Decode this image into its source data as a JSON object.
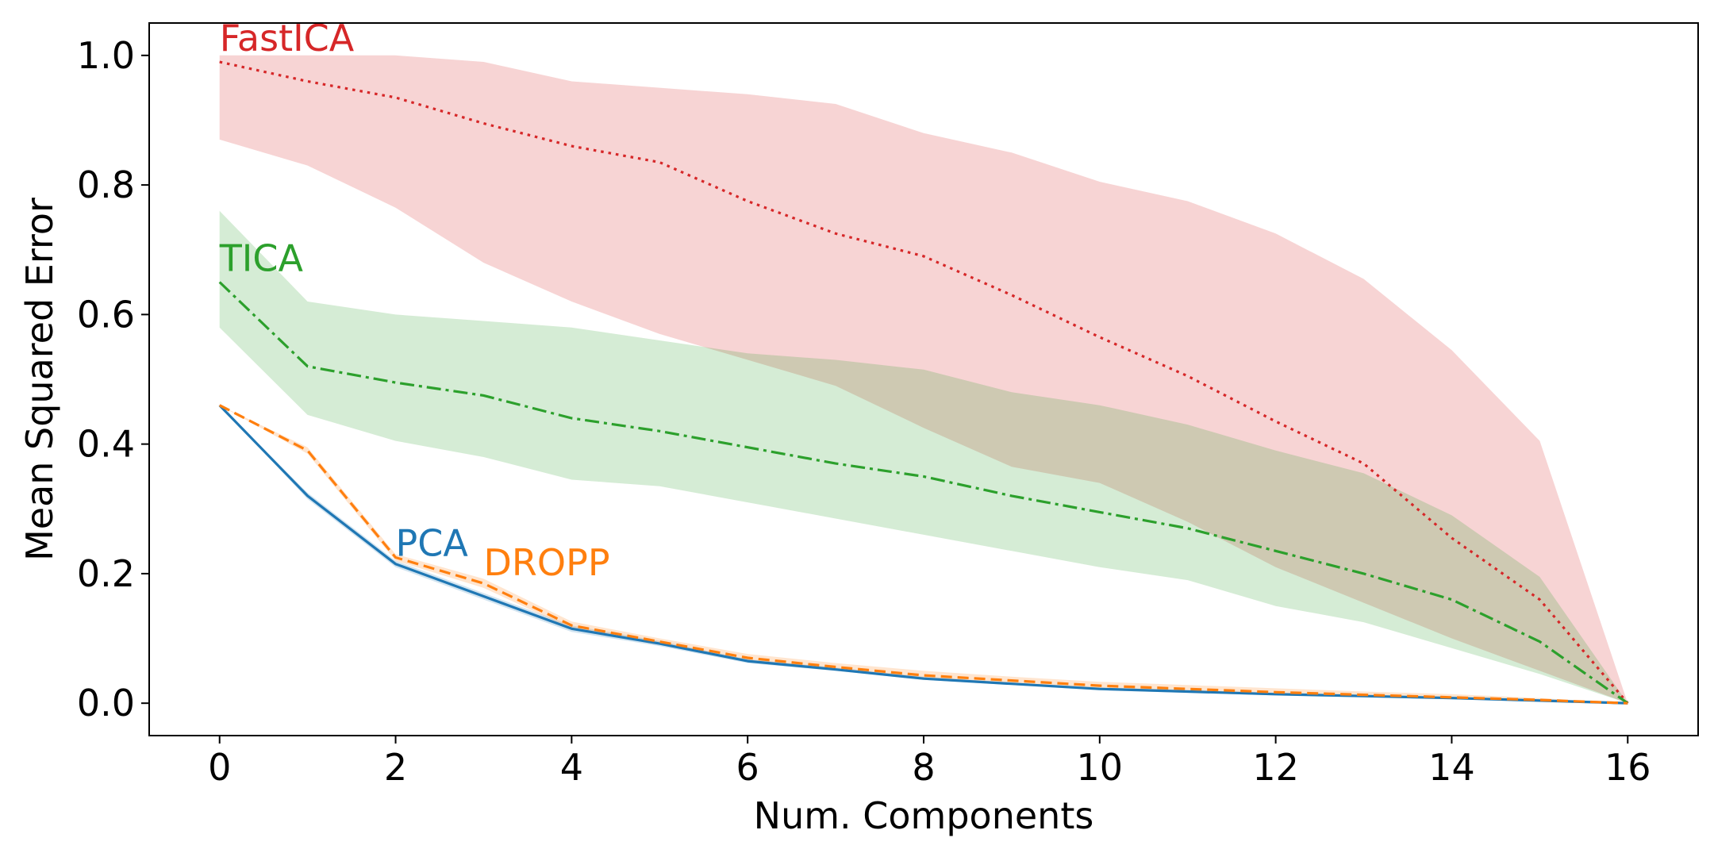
{
  "chart_data": {
    "type": "line",
    "xlabel": "Num. Components",
    "ylabel": "Mean Squared Error",
    "xlim": [
      -0.8,
      16.8
    ],
    "ylim": [
      -0.05,
      1.05
    ],
    "xticks": [
      0,
      2,
      4,
      6,
      8,
      10,
      12,
      14,
      16
    ],
    "yticks": [
      0.0,
      0.2,
      0.4,
      0.6,
      0.8,
      1.0
    ],
    "xtick_labels": [
      "0",
      "2",
      "4",
      "6",
      "8",
      "10",
      "12",
      "14",
      "16"
    ],
    "ytick_labels": [
      "0.0",
      "0.2",
      "0.4",
      "0.6",
      "0.8",
      "1.0"
    ],
    "grid": false,
    "x": [
      0,
      1,
      2,
      3,
      4,
      5,
      6,
      7,
      8,
      9,
      10,
      11,
      12,
      13,
      14,
      15,
      16
    ],
    "series": [
      {
        "name": "FastICA",
        "color": "#d62728",
        "style": "dotted",
        "label_at": [
          0,
          1.0
        ],
        "values": [
          0.99,
          0.96,
          0.935,
          0.895,
          0.86,
          0.835,
          0.775,
          0.725,
          0.69,
          0.63,
          0.565,
          0.505,
          0.435,
          0.37,
          0.255,
          0.16,
          0.0
        ],
        "band_low": [
          0.87,
          0.83,
          0.765,
          0.68,
          0.62,
          0.57,
          0.53,
          0.49,
          0.425,
          0.365,
          0.34,
          0.28,
          0.21,
          0.155,
          0.1,
          0.05,
          0.0
        ],
        "band_high": [
          1.0,
          1.0,
          1.0,
          0.99,
          0.96,
          0.95,
          0.94,
          0.925,
          0.88,
          0.85,
          0.805,
          0.775,
          0.725,
          0.655,
          0.545,
          0.405,
          0.0
        ]
      },
      {
        "name": "TICA",
        "color": "#2ca02c",
        "style": "dashdot",
        "label_at": [
          0,
          0.66
        ],
        "values": [
          0.65,
          0.52,
          0.495,
          0.475,
          0.44,
          0.42,
          0.395,
          0.37,
          0.35,
          0.32,
          0.295,
          0.27,
          0.235,
          0.2,
          0.16,
          0.095,
          0.0
        ],
        "band_low": [
          0.58,
          0.445,
          0.405,
          0.38,
          0.345,
          0.335,
          0.31,
          0.285,
          0.26,
          0.235,
          0.21,
          0.19,
          0.15,
          0.125,
          0.085,
          0.045,
          0.0
        ],
        "band_high": [
          0.76,
          0.62,
          0.6,
          0.59,
          0.58,
          0.56,
          0.54,
          0.53,
          0.515,
          0.48,
          0.46,
          0.43,
          0.39,
          0.355,
          0.29,
          0.195,
          0.0
        ]
      },
      {
        "name": "PCA",
        "color": "#1f77b4",
        "style": "solid",
        "label_at": [
          2,
          0.22
        ],
        "values": [
          0.46,
          0.32,
          0.215,
          0.165,
          0.115,
          0.092,
          0.065,
          0.052,
          0.038,
          0.03,
          0.022,
          0.018,
          0.014,
          0.011,
          0.008,
          0.004,
          0.0
        ],
        "band_low": [
          0.46,
          0.315,
          0.21,
          0.16,
          0.11,
          0.088,
          0.062,
          0.05,
          0.036,
          0.028,
          0.02,
          0.016,
          0.012,
          0.009,
          0.006,
          0.003,
          0.0
        ],
        "band_high": [
          0.46,
          0.325,
          0.22,
          0.17,
          0.12,
          0.096,
          0.068,
          0.055,
          0.041,
          0.032,
          0.024,
          0.02,
          0.016,
          0.013,
          0.01,
          0.005,
          0.0
        ]
      },
      {
        "name": "DROPP",
        "color": "#ff7f0e",
        "style": "dashed",
        "label_at": [
          3,
          0.19
        ],
        "values": [
          0.46,
          0.39,
          0.225,
          0.185,
          0.12,
          0.095,
          0.07,
          0.056,
          0.043,
          0.035,
          0.027,
          0.022,
          0.017,
          0.013,
          0.009,
          0.005,
          0.0
        ],
        "band_low": [
          0.46,
          0.385,
          0.22,
          0.178,
          0.115,
          0.09,
          0.066,
          0.052,
          0.039,
          0.031,
          0.024,
          0.019,
          0.014,
          0.011,
          0.007,
          0.004,
          0.0
        ],
        "band_high": [
          0.46,
          0.395,
          0.23,
          0.192,
          0.126,
          0.1,
          0.076,
          0.062,
          0.05,
          0.041,
          0.033,
          0.028,
          0.023,
          0.018,
          0.014,
          0.008,
          0.0
        ]
      }
    ]
  }
}
